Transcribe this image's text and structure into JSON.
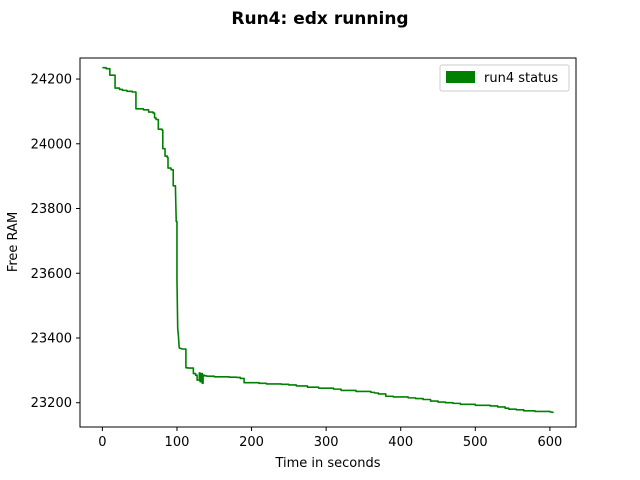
{
  "chart_data": {
    "type": "line",
    "title": "Run4: edx running",
    "xlabel": "Time  in seconds",
    "ylabel": "Free RAM",
    "xlim": [
      -30,
      635
    ],
    "ylim": [
      23125,
      24265
    ],
    "xticks": [
      0,
      100,
      200,
      300,
      400,
      500,
      600
    ],
    "yticks": [
      23200,
      23400,
      23600,
      23800,
      24000,
      24200
    ],
    "grid": false,
    "legend": {
      "placement": "top-right"
    },
    "series": [
      {
        "name": "run4 status",
        "color": "#008000",
        "x": [
          0,
          5,
          5,
          10,
          10,
          17,
          17,
          23,
          23,
          27,
          27,
          33,
          33,
          40,
          40,
          45,
          45,
          55,
          55,
          62,
          62,
          68,
          68,
          70,
          70,
          72,
          72,
          75,
          75,
          80,
          80,
          81,
          81,
          84,
          84,
          87,
          87,
          88,
          88,
          92,
          92,
          95,
          95,
          98,
          98,
          99,
          100,
          100,
          101,
          102,
          103,
          104,
          105,
          107,
          107,
          112,
          112,
          115,
          115,
          116,
          116,
          122,
          122,
          125,
          125,
          127,
          127,
          130,
          130,
          131,
          131,
          133,
          133,
          134,
          134,
          135,
          135,
          137,
          137,
          140,
          140,
          150,
          150,
          160,
          160,
          170,
          170,
          180,
          180,
          185,
          185,
          190,
          190,
          200,
          200,
          210,
          210,
          220,
          220,
          240,
          240,
          250,
          250,
          260,
          260,
          275,
          275,
          290,
          290,
          310,
          310,
          320,
          320,
          340,
          340,
          360,
          360,
          365,
          365,
          370,
          370,
          380,
          380,
          390,
          390,
          410,
          410,
          420,
          420,
          430,
          430,
          440,
          440,
          450,
          450,
          460,
          460,
          470,
          470,
          480,
          480,
          500,
          500,
          520,
          520,
          530,
          530,
          540,
          540,
          545,
          545,
          555,
          555,
          565,
          565,
          580,
          580,
          600,
          600,
          605
        ],
        "y": [
          24235,
          24235,
          24232,
          24232,
          24212,
          24212,
          24172,
          24172,
          24168,
          24168,
          24165,
          24165,
          24162,
          24162,
          24160,
          24160,
          24108,
          24108,
          24105,
          24105,
          24098,
          24098,
          24095,
          24095,
          24080,
          24080,
          24075,
          24075,
          24045,
          24045,
          24042,
          24042,
          23985,
          23985,
          23962,
          23962,
          23958,
          23958,
          23925,
          23925,
          23920,
          23920,
          23870,
          23870,
          23860,
          23760,
          23760,
          23580,
          23430,
          23405,
          23370,
          23368,
          23368,
          23366,
          23366,
          23366,
          23308,
          23308,
          23307,
          23307,
          23307,
          23307,
          23290,
          23290,
          23285,
          23285,
          23270,
          23270,
          23292,
          23292,
          23265,
          23265,
          23290,
          23290,
          23260,
          23260,
          23285,
          23285,
          23283,
          23283,
          23282,
          23282,
          23280,
          23280,
          23280,
          23280,
          23279,
          23279,
          23278,
          23278,
          23275,
          23275,
          23262,
          23262,
          23262,
          23262,
          23260,
          23260,
          23258,
          23258,
          23257,
          23257,
          23255,
          23255,
          23252,
          23252,
          23248,
          23248,
          23245,
          23245,
          23242,
          23242,
          23238,
          23238,
          23235,
          23235,
          23232,
          23232,
          23230,
          23230,
          23227,
          23227,
          23220,
          23220,
          23218,
          23218,
          23215,
          23215,
          23213,
          23213,
          23210,
          23210,
          23205,
          23205,
          23202,
          23202,
          23200,
          23200,
          23198,
          23198,
          23195,
          23195,
          23192,
          23192,
          23190,
          23190,
          23187,
          23187,
          23183,
          23183,
          23180,
          23180,
          23178,
          23178,
          23175,
          23175,
          23173,
          23173,
          23172,
          23170
        ]
      }
    ]
  }
}
